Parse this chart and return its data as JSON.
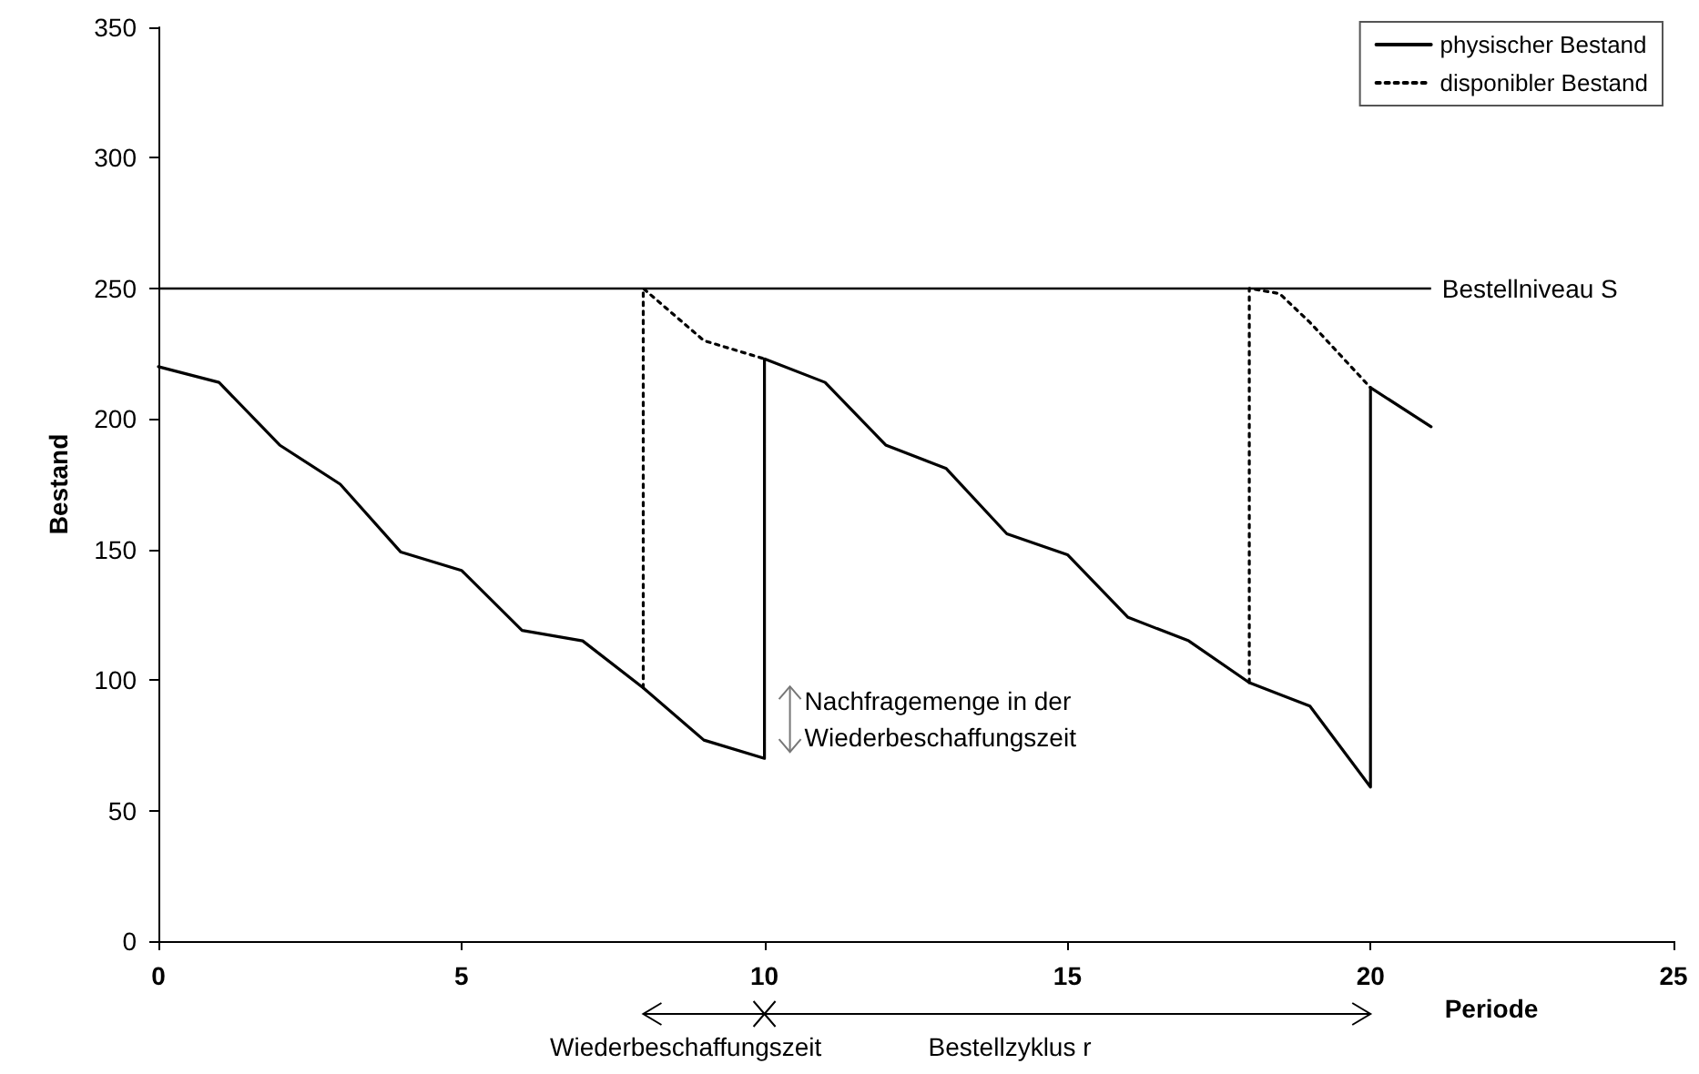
{
  "chart_data": {
    "type": "line",
    "xlabel": "Periode",
    "ylabel": "Bestand",
    "xlim": [
      0,
      25
    ],
    "xticks": [
      0,
      5,
      10,
      15,
      20,
      25
    ],
    "ylim": [
      0,
      350
    ],
    "yticks": [
      0,
      50,
      100,
      150,
      200,
      250,
      300,
      350
    ],
    "grid": false,
    "legend": "top right",
    "marker": "none",
    "series": [
      {
        "name": "physischer Bestand",
        "color": "#000000",
        "line_style": "solid",
        "x": [
          0,
          1,
          2,
          3,
          4,
          5,
          6,
          7,
          8,
          9,
          10,
          10,
          11,
          12,
          13,
          14,
          15,
          16,
          17,
          18,
          19,
          20,
          20,
          21
        ],
        "values": [
          220,
          214,
          190,
          175,
          149,
          142,
          119,
          115,
          97,
          77,
          70,
          223,
          214,
          190,
          181,
          156,
          148,
          124,
          115,
          99,
          90,
          59,
          212,
          197
        ]
      },
      {
        "name": "disponibler Bestand",
        "color": "#000000",
        "line_style": "dotted",
        "x": [
          8,
          8,
          8.5,
          9,
          10,
          null,
          18,
          18,
          18.5,
          19,
          20
        ],
        "values": [
          97,
          250,
          240,
          230,
          223,
          null,
          99,
          250,
          248,
          237,
          212
        ]
      }
    ],
    "ref_lines": [
      {
        "axis": "y",
        "value": 250,
        "label": "Bestellniveau S",
        "color": "#000000"
      }
    ],
    "annotations": [
      "Wiederbeschaffungszeit",
      "Bestellzyklus r",
      {
        "text": "Nachfragemenge in der\nWiederbeschaffungszeit",
        "x": 10,
        "y": 85
      }
    ]
  }
}
